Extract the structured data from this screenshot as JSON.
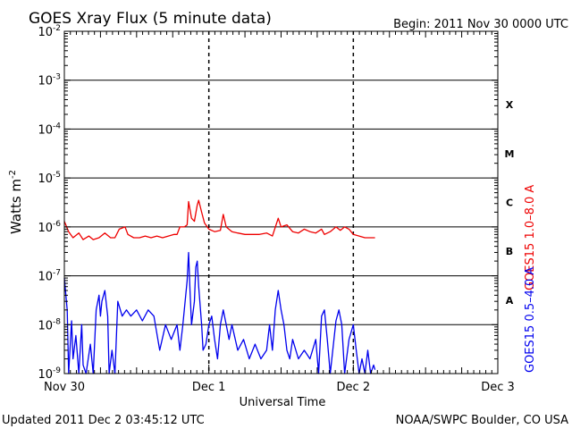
{
  "chart_data": {
    "type": "line",
    "title": "GOES Xray Flux (5 minute data)",
    "begin_label": "Begin:  2011 Nov 30 0000 UTC",
    "xlabel": "Universal Time",
    "ylabel_main": "Watts m",
    "ylabel_exp": "-2",
    "x_unit": "days since 2011 Nov 30 0000 UTC",
    "x_range": [
      0,
      3
    ],
    "x_ticks": [
      {
        "x": 0,
        "label": "Nov 30"
      },
      {
        "x": 1,
        "label": "Dec 1"
      },
      {
        "x": 2,
        "label": "Dec 2"
      },
      {
        "x": 3,
        "label": "Dec 3"
      }
    ],
    "y_scale": "log",
    "y_range": [
      1e-09,
      0.01
    ],
    "y_ticks": [
      {
        "exp": -2,
        "label_base": "10",
        "label_exp": "-2"
      },
      {
        "exp": -3,
        "label_base": "10",
        "label_exp": "-3"
      },
      {
        "exp": -4,
        "label_base": "10",
        "label_exp": "-4"
      },
      {
        "exp": -5,
        "label_base": "10",
        "label_exp": "-5"
      },
      {
        "exp": -6,
        "label_base": "10",
        "label_exp": "-6"
      },
      {
        "exp": -7,
        "label_base": "10",
        "label_exp": "-7"
      },
      {
        "exp": -8,
        "label_base": "10",
        "label_exp": "-8"
      },
      {
        "exp": -9,
        "label_base": "10",
        "label_exp": "-9"
      }
    ],
    "flare_classes": [
      {
        "label": "X",
        "exp": -3.5
      },
      {
        "label": "M",
        "exp": -4.5
      },
      {
        "label": "C",
        "exp": -5.5
      },
      {
        "label": "B",
        "exp": -6.5
      },
      {
        "label": "A",
        "exp": -7.5
      }
    ],
    "series": [
      {
        "name": "GOES15 1.0–8.0 A",
        "color": "#ee0000",
        "points": [
          [
            0.0,
            1.3e-06
          ],
          [
            0.03,
            8e-07
          ],
          [
            0.06,
            6e-07
          ],
          [
            0.1,
            7.5e-07
          ],
          [
            0.13,
            5.5e-07
          ],
          [
            0.17,
            6.5e-07
          ],
          [
            0.2,
            5.5e-07
          ],
          [
            0.24,
            6e-07
          ],
          [
            0.28,
            7.5e-07
          ],
          [
            0.32,
            6e-07
          ],
          [
            0.35,
            6e-07
          ],
          [
            0.38,
            9e-07
          ],
          [
            0.42,
            1e-06
          ],
          [
            0.44,
            7e-07
          ],
          [
            0.48,
            6e-07
          ],
          [
            0.52,
            6e-07
          ],
          [
            0.56,
            6.5e-07
          ],
          [
            0.6,
            6e-07
          ],
          [
            0.64,
            6.5e-07
          ],
          [
            0.68,
            6e-07
          ],
          [
            0.72,
            6.5e-07
          ],
          [
            0.76,
            7e-07
          ],
          [
            0.78,
            7e-07
          ],
          [
            0.8,
            1e-06
          ],
          [
            0.83,
            1e-06
          ],
          [
            0.85,
            1.1e-06
          ],
          [
            0.86,
            3.3e-06
          ],
          [
            0.88,
            1.5e-06
          ],
          [
            0.9,
            1.3e-06
          ],
          [
            0.92,
            2.8e-06
          ],
          [
            0.93,
            3.5e-06
          ],
          [
            0.95,
            2e-06
          ],
          [
            0.97,
            1.2e-06
          ],
          [
            1.0,
            9e-07
          ],
          [
            1.04,
            8e-07
          ],
          [
            1.08,
            8.5e-07
          ],
          [
            1.1,
            1.8e-06
          ],
          [
            1.12,
            1e-06
          ],
          [
            1.16,
            8e-07
          ],
          [
            1.2,
            7.5e-07
          ],
          [
            1.25,
            7e-07
          ],
          [
            1.3,
            7e-07
          ],
          [
            1.35,
            7e-07
          ],
          [
            1.4,
            7.5e-07
          ],
          [
            1.44,
            6.5e-07
          ],
          [
            1.48,
            1.5e-06
          ],
          [
            1.5,
            1e-06
          ],
          [
            1.54,
            1.1e-06
          ],
          [
            1.58,
            8e-07
          ],
          [
            1.62,
            7.5e-07
          ],
          [
            1.66,
            9e-07
          ],
          [
            1.7,
            8e-07
          ],
          [
            1.74,
            7.5e-07
          ],
          [
            1.78,
            9e-07
          ],
          [
            1.8,
            7e-07
          ],
          [
            1.84,
            8e-07
          ],
          [
            1.88,
            1e-06
          ],
          [
            1.91,
            8.5e-07
          ],
          [
            1.94,
            1e-06
          ],
          [
            1.97,
            9e-07
          ],
          [
            2.0,
            7e-07
          ],
          [
            2.04,
            6.5e-07
          ],
          [
            2.08,
            6e-07
          ],
          [
            2.12,
            6e-07
          ],
          [
            2.15,
            6e-07
          ]
        ]
      },
      {
        "name": "GOES15 0.5–4.0 A",
        "color": "#0000ee",
        "points": [
          [
            0.0,
            9e-08
          ],
          [
            0.02,
            2e-08
          ],
          [
            0.03,
            1e-09
          ],
          [
            0.05,
            1.2e-08
          ],
          [
            0.06,
            2e-09
          ],
          [
            0.08,
            6e-09
          ],
          [
            0.1,
            1e-09
          ],
          [
            0.12,
            1e-08
          ],
          [
            0.13,
            1.5e-09
          ],
          [
            0.15,
            1e-09
          ],
          [
            0.18,
            4e-09
          ],
          [
            0.2,
            1e-09
          ],
          [
            0.22,
            2e-08
          ],
          [
            0.24,
            4e-08
          ],
          [
            0.25,
            1.5e-08
          ],
          [
            0.26,
            3e-08
          ],
          [
            0.28,
            5e-08
          ],
          [
            0.3,
            1.5e-08
          ],
          [
            0.31,
            1e-09
          ],
          [
            0.33,
            3e-09
          ],
          [
            0.35,
            1e-09
          ],
          [
            0.37,
            3e-08
          ],
          [
            0.4,
            1.5e-08
          ],
          [
            0.43,
            2e-08
          ],
          [
            0.46,
            1.5e-08
          ],
          [
            0.5,
            2e-08
          ],
          [
            0.54,
            1.2e-08
          ],
          [
            0.58,
            2e-08
          ],
          [
            0.62,
            1.5e-08
          ],
          [
            0.66,
            3e-09
          ],
          [
            0.7,
            1e-08
          ],
          [
            0.74,
            5e-09
          ],
          [
            0.78,
            1e-08
          ],
          [
            0.8,
            3e-09
          ],
          [
            0.82,
            1e-08
          ],
          [
            0.84,
            4e-08
          ],
          [
            0.85,
            8e-08
          ],
          [
            0.86,
            3e-07
          ],
          [
            0.87,
            5e-08
          ],
          [
            0.88,
            1e-08
          ],
          [
            0.9,
            3e-08
          ],
          [
            0.91,
            1.5e-07
          ],
          [
            0.92,
            2e-07
          ],
          [
            0.93,
            6e-08
          ],
          [
            0.95,
            1e-08
          ],
          [
            0.96,
            3e-09
          ],
          [
            0.98,
            4e-09
          ],
          [
            1.0,
            1e-08
          ],
          [
            1.02,
            1.5e-08
          ],
          [
            1.04,
            5e-09
          ],
          [
            1.06,
            2e-09
          ],
          [
            1.08,
            1e-08
          ],
          [
            1.1,
            2e-08
          ],
          [
            1.12,
            1e-08
          ],
          [
            1.14,
            5e-09
          ],
          [
            1.16,
            1e-08
          ],
          [
            1.2,
            3e-09
          ],
          [
            1.24,
            5e-09
          ],
          [
            1.28,
            2e-09
          ],
          [
            1.32,
            4e-09
          ],
          [
            1.36,
            2e-09
          ],
          [
            1.4,
            3e-09
          ],
          [
            1.42,
            1e-08
          ],
          [
            1.44,
            3e-09
          ],
          [
            1.46,
            2e-08
          ],
          [
            1.48,
            5e-08
          ],
          [
            1.5,
            2e-08
          ],
          [
            1.52,
            1e-08
          ],
          [
            1.54,
            3e-09
          ],
          [
            1.56,
            2e-09
          ],
          [
            1.58,
            5e-09
          ],
          [
            1.62,
            2e-09
          ],
          [
            1.66,
            3e-09
          ],
          [
            1.7,
            2e-09
          ],
          [
            1.74,
            5e-09
          ],
          [
            1.76,
            1e-09
          ],
          [
            1.78,
            1.5e-08
          ],
          [
            1.8,
            2e-08
          ],
          [
            1.82,
            5e-09
          ],
          [
            1.84,
            1e-09
          ],
          [
            1.88,
            1.2e-08
          ],
          [
            1.9,
            2e-08
          ],
          [
            1.92,
            1e-08
          ],
          [
            1.94,
            1e-09
          ],
          [
            1.97,
            5e-09
          ],
          [
            2.0,
            1e-08
          ],
          [
            2.02,
            3e-09
          ],
          [
            2.04,
            1e-09
          ],
          [
            2.06,
            2e-09
          ],
          [
            2.08,
            1e-09
          ],
          [
            2.1,
            3e-09
          ],
          [
            2.12,
            1e-09
          ],
          [
            2.14,
            1.5e-09
          ],
          [
            2.15,
            1.2e-09
          ]
        ]
      }
    ],
    "grid": true
  },
  "footer": {
    "updated": "Updated 2011 Dec  2 03:45:12 UTC",
    "source": "NOAA/SWPC Boulder, CO USA"
  }
}
